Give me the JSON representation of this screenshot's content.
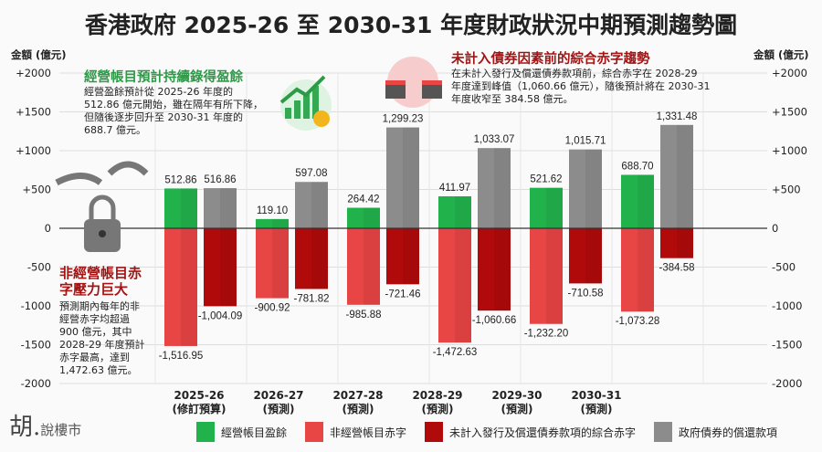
{
  "title": "香港政府 2025-26 至 2030-31 年度財政狀況中期預測趨勢圖",
  "notes": {
    "surplus": {
      "heading": "經營帳目預計持續錄得盈餘",
      "lines": [
        "經營盈餘預計從 2025-26 年度的",
        "512.86 億元開始，雖在隔年有所下降，",
        "但隨後逐步回升至 2030-31 年度的",
        "688.7 億元。"
      ]
    },
    "deficit_trend": {
      "heading": "未計入債券因素前的綜合赤字趨勢",
      "lines": [
        "在未計入發行及償還債券款項前，綜合赤字在 2028-29",
        "年度達到峰值（1,060.66 億元），隨後預計將在 2030-31",
        "年度收窄至 384.58 億元。"
      ]
    },
    "non_operating": {
      "heading_lines": [
        "非經營帳目赤",
        "字壓力巨大"
      ],
      "lines": [
        "預測期內每年的非",
        "經營赤字均超過",
        "900 億元，其中",
        "2028-29 年度預計",
        "赤字最高，達到",
        "1,472.63 億元。"
      ]
    }
  },
  "logo": {
    "text": "胡.",
    "sub": "說樓市"
  },
  "chart_data": {
    "type": "bar",
    "ylabel_left": "金額 (億元)",
    "ylabel_right": "金額 (億元)",
    "ylim": [
      -2000,
      2000
    ],
    "yticks": [
      2000,
      1500,
      1000,
      500,
      0,
      -500,
      -1000,
      -1500,
      -2000
    ],
    "ytick_labels": [
      "+2000",
      "+1500",
      "+1000",
      "+500",
      "0",
      "-500",
      "-1000",
      "-1500",
      "-2000"
    ],
    "grid": true,
    "legend_position": "bottom",
    "categories": [
      [
        "2025-26",
        "(修訂預算)"
      ],
      [
        "2026-27",
        "(預測)"
      ],
      [
        "2027-28",
        "(預測)"
      ],
      [
        "2028-29",
        "(預測)"
      ],
      [
        "2029-30",
        "(預測)"
      ],
      [
        "2030-31",
        "(預測)"
      ]
    ],
    "series": [
      {
        "name": "經營帳目盈餘",
        "color": "#22b24c",
        "values": [
          512.86,
          119.1,
          264.42,
          411.97,
          521.62,
          688.7
        ],
        "labels": [
          "512.86",
          "119.10",
          "264.42",
          "411.97",
          "521.62",
          "688.70"
        ]
      },
      {
        "name": "非經營帳目赤字",
        "color": "#e84545",
        "values": [
          -1516.95,
          -900.92,
          -985.88,
          -1472.63,
          -1232.2,
          -1073.28
        ],
        "labels": [
          "-1,516.95",
          "-900.92",
          "-985.88",
          "-1,472.63",
          "-1,232.20",
          "-1,073.28"
        ]
      },
      {
        "name": "未計入發行及償還債券款項的綜合赤字",
        "color": "#b00a0a",
        "values": [
          -1004.09,
          -781.82,
          -721.46,
          -1060.66,
          -710.58,
          -384.58
        ],
        "labels": [
          "-1,004.09",
          "-781.82",
          "-721.46",
          "-1,060.66",
          "-710.58",
          "-384.58"
        ]
      },
      {
        "name": "政府債券的償還款項",
        "color": "#8c8c8c",
        "values": [
          516.86,
          597.08,
          1299.23,
          1033.07,
          1015.71,
          1331.48
        ],
        "labels": [
          "516.86",
          "597.08",
          "1,299.23",
          "1,033.07",
          "1,015.71",
          "1,331.48"
        ]
      }
    ]
  }
}
